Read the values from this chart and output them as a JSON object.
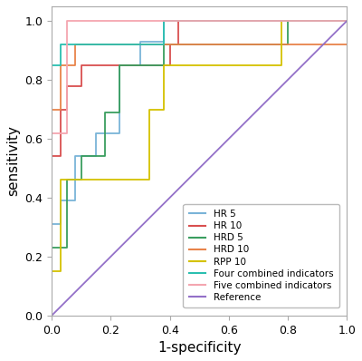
{
  "title": "",
  "xlabel": "1-specificity",
  "ylabel": "sensitivity",
  "xlim": [
    0.0,
    1.0
  ],
  "ylim": [
    0.0,
    1.05
  ],
  "figsize": [
    4.0,
    3.98
  ],
  "dpi": 100,
  "background_color": "#ffffff",
  "curves": {
    "HR5": {
      "color": "#7ab4d8",
      "label": "HR 5",
      "x": [
        0.0,
        0.0,
        0.03,
        0.03,
        0.08,
        0.08,
        0.15,
        0.15,
        0.23,
        0.23,
        0.3,
        0.3,
        0.38,
        0.38,
        0.8,
        0.8,
        1.0
      ],
      "y": [
        0.0,
        0.31,
        0.31,
        0.39,
        0.39,
        0.54,
        0.54,
        0.62,
        0.62,
        0.85,
        0.85,
        0.93,
        0.93,
        1.0,
        1.0,
        1.0,
        1.0
      ]
    },
    "HR10": {
      "color": "#d94f4f",
      "label": "HR 10",
      "x": [
        0.0,
        0.0,
        0.03,
        0.03,
        0.05,
        0.05,
        0.1,
        0.1,
        0.4,
        0.4,
        0.43,
        0.43,
        1.0
      ],
      "y": [
        0.0,
        0.54,
        0.54,
        0.7,
        0.7,
        0.78,
        0.78,
        0.85,
        0.85,
        0.92,
        0.92,
        1.0,
        1.0
      ]
    },
    "HRD5": {
      "color": "#3a9e5f",
      "label": "HRD 5",
      "x": [
        0.0,
        0.0,
        0.05,
        0.05,
        0.1,
        0.1,
        0.18,
        0.18,
        0.23,
        0.23,
        0.38,
        0.38,
        0.8,
        0.8,
        1.0
      ],
      "y": [
        0.0,
        0.23,
        0.23,
        0.46,
        0.46,
        0.54,
        0.54,
        0.69,
        0.69,
        0.85,
        0.85,
        0.92,
        0.92,
        1.0,
        1.0
      ]
    },
    "HRD10": {
      "color": "#e8834a",
      "label": "HRD 10",
      "x": [
        0.0,
        0.0,
        0.03,
        0.03,
        0.08,
        0.08,
        0.22,
        0.22,
        1.0
      ],
      "y": [
        0.0,
        0.7,
        0.7,
        0.85,
        0.85,
        0.92,
        0.92,
        0.92,
        0.92
      ]
    },
    "RPP10": {
      "color": "#d4c200",
      "label": "RPP 10",
      "x": [
        0.0,
        0.0,
        0.03,
        0.03,
        0.33,
        0.33,
        0.38,
        0.38,
        0.78,
        0.78,
        1.0
      ],
      "y": [
        0.0,
        0.15,
        0.15,
        0.46,
        0.46,
        0.7,
        0.7,
        0.85,
        0.85,
        1.0,
        1.0
      ]
    },
    "FourCombined": {
      "color": "#2abfb0",
      "label": "Four combined indicators",
      "x": [
        0.0,
        0.0,
        0.03,
        0.03,
        0.38,
        0.38,
        0.8,
        0.8,
        1.0
      ],
      "y": [
        0.0,
        0.85,
        0.85,
        0.92,
        0.92,
        1.0,
        1.0,
        1.0,
        1.0
      ]
    },
    "FiveCombined": {
      "color": "#f4a6b0",
      "label": "Five combined indicators",
      "x": [
        0.0,
        0.0,
        0.05,
        0.05,
        0.22,
        0.22,
        1.0
      ],
      "y": [
        0.0,
        0.62,
        0.62,
        1.0,
        1.0,
        1.0,
        1.0
      ]
    },
    "Reference": {
      "color": "#9370c8",
      "label": "Reference",
      "x": [
        0.0,
        1.0
      ],
      "y": [
        0.0,
        1.0
      ]
    }
  },
  "tick_fontsize": 9,
  "label_fontsize": 11,
  "legend_fontsize": 7.5,
  "xticks": [
    0.0,
    0.2,
    0.4,
    0.6,
    0.8,
    1.0
  ],
  "yticks": [
    0.0,
    0.2,
    0.4,
    0.6,
    0.8,
    1.0
  ]
}
